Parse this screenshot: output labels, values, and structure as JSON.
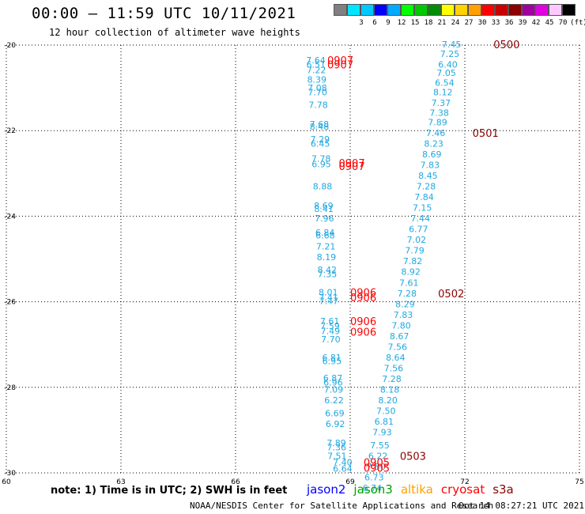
{
  "header": {
    "title": "00:00 – 11:59 UTC 10/11/2021",
    "subtitle": "12 hour collection of altimeter wave heights"
  },
  "color_scale": {
    "unit": "(ft)",
    "bins": [
      {
        "label": "",
        "color": "#808080"
      },
      {
        "label": "3",
        "color": "#00e5ff"
      },
      {
        "label": "6",
        "color": "#00c8ff"
      },
      {
        "label": "9",
        "color": "#0000ff"
      },
      {
        "label": "12",
        "color": "#00aaff"
      },
      {
        "label": "15",
        "color": "#00ff00"
      },
      {
        "label": "18",
        "color": "#00c800"
      },
      {
        "label": "21",
        "color": "#008c00"
      },
      {
        "label": "24",
        "color": "#ffff00"
      },
      {
        "label": "27",
        "color": "#ffd200"
      },
      {
        "label": "30",
        "color": "#ffa000"
      },
      {
        "label": "33",
        "color": "#ff0000"
      },
      {
        "label": "36",
        "color": "#c80000"
      },
      {
        "label": "39",
        "color": "#8c0000"
      },
      {
        "label": "42",
        "color": "#a000a0"
      },
      {
        "label": "45",
        "color": "#e000e0"
      },
      {
        "label": "70",
        "color": "#ffc8ff"
      },
      {
        "label": "",
        "color": "#000000"
      }
    ]
  },
  "map": {
    "lon_range": [
      60,
      75
    ],
    "lat_range": [
      -30,
      -20
    ],
    "lon_ticks": [
      "60",
      "63",
      "66",
      "69",
      "72",
      "75"
    ],
    "lat_ticks": [
      "-20",
      "-22",
      "-24",
      "-26",
      "-28",
      "-30"
    ],
    "grid": "dotted"
  },
  "passes": {
    "label_color": "#ff0000",
    "track_color": "#20a8e0",
    "west_track": [
      {
        "lat": -20.35,
        "v": "7.64"
      },
      {
        "lat": -20.45,
        "v": "6.51"
      },
      {
        "lat": -20.58,
        "v": "7.22"
      },
      {
        "lat": -20.8,
        "v": "8.39"
      },
      {
        "lat": -21.0,
        "v": "7.08"
      },
      {
        "lat": -21.1,
        "v": "7.70"
      },
      {
        "lat": -21.4,
        "v": "7.78"
      },
      {
        "lat": -21.85,
        "v": "7.68"
      },
      {
        "lat": -21.9,
        "v": "8.48"
      },
      {
        "lat": -22.2,
        "v": "7.29"
      },
      {
        "lat": -22.3,
        "v": "6.45"
      },
      {
        "lat": -22.65,
        "v": "7.78"
      },
      {
        "lat": -22.78,
        "v": "6.95"
      },
      {
        "lat": -23.3,
        "v": "8.88"
      },
      {
        "lat": -23.75,
        "v": "8.69"
      },
      {
        "lat": -23.83,
        "v": "8.41"
      },
      {
        "lat": -24.05,
        "v": "7.96"
      },
      {
        "lat": -24.38,
        "v": "6.84"
      },
      {
        "lat": -24.45,
        "v": "6.68"
      },
      {
        "lat": -24.7,
        "v": "7.21"
      },
      {
        "lat": -24.95,
        "v": "8.19"
      },
      {
        "lat": -25.25,
        "v": "8.42"
      },
      {
        "lat": -25.35,
        "v": "7.35"
      },
      {
        "lat": -25.78,
        "v": "8.01"
      },
      {
        "lat": -25.9,
        "v": "7.41"
      },
      {
        "lat": -25.98,
        "v": "7.47"
      },
      {
        "lat": -26.45,
        "v": "7.61"
      },
      {
        "lat": -26.56,
        "v": "7.59"
      },
      {
        "lat": -26.68,
        "v": "7.49"
      },
      {
        "lat": -26.88,
        "v": "7.70"
      },
      {
        "lat": -27.3,
        "v": "6.81"
      },
      {
        "lat": -27.38,
        "v": "6.95"
      },
      {
        "lat": -27.78,
        "v": "6.87"
      },
      {
        "lat": -27.88,
        "v": "6.96"
      },
      {
        "lat": -28.05,
        "v": "7.09"
      },
      {
        "lat": -28.3,
        "v": "6.22"
      },
      {
        "lat": -28.6,
        "v": "6.69"
      },
      {
        "lat": -28.85,
        "v": "6.92"
      },
      {
        "lat": -29.3,
        "v": "7.89"
      },
      {
        "lat": -29.4,
        "v": "7.36"
      },
      {
        "lat": -29.6,
        "v": "7.51"
      }
    ],
    "east_track": [
      {
        "lat": -19.98,
        "v": "7.45"
      },
      {
        "lat": -20.2,
        "v": "7.25"
      },
      {
        "lat": -20.45,
        "v": "6.40"
      },
      {
        "lat": -20.65,
        "v": "7.05"
      },
      {
        "lat": -20.88,
        "v": "6.54"
      },
      {
        "lat": -21.1,
        "v": "8.12"
      },
      {
        "lat": -21.35,
        "v": "7.37"
      },
      {
        "lat": -21.58,
        "v": "7.38"
      },
      {
        "lat": -21.8,
        "v": "7.89"
      },
      {
        "lat": -22.05,
        "v": "7.46"
      },
      {
        "lat": -22.3,
        "v": "8.23"
      },
      {
        "lat": -22.55,
        "v": "8.69"
      },
      {
        "lat": -22.8,
        "v": "7.83"
      },
      {
        "lat": -23.05,
        "v": "8.45"
      },
      {
        "lat": -23.3,
        "v": "7.28"
      },
      {
        "lat": -23.55,
        "v": "7.84"
      },
      {
        "lat": -23.8,
        "v": "7.15"
      },
      {
        "lat": -24.05,
        "v": "7.44"
      },
      {
        "lat": -24.3,
        "v": "6.77"
      },
      {
        "lat": -24.55,
        "v": "7.02"
      },
      {
        "lat": -24.8,
        "v": "7.79"
      },
      {
        "lat": -25.05,
        "v": "7.82"
      },
      {
        "lat": -25.3,
        "v": "8.92"
      },
      {
        "lat": -25.55,
        "v": "7.61"
      },
      {
        "lat": -25.8,
        "v": "7.28"
      },
      {
        "lat": -26.05,
        "v": "8.29"
      },
      {
        "lat": -26.3,
        "v": "7.83"
      },
      {
        "lat": -26.55,
        "v": "7.80"
      },
      {
        "lat": -26.8,
        "v": "8.67"
      },
      {
        "lat": -27.05,
        "v": "7.56"
      },
      {
        "lat": -27.3,
        "v": "8.64"
      },
      {
        "lat": -27.55,
        "v": "7.56"
      },
      {
        "lat": -27.8,
        "v": "7.28"
      },
      {
        "lat": -28.05,
        "v": "8.18"
      },
      {
        "lat": -28.3,
        "v": "8.20"
      },
      {
        "lat": -28.55,
        "v": "7.50"
      },
      {
        "lat": -28.8,
        "v": "6.81"
      },
      {
        "lat": -29.05,
        "v": "7.93"
      },
      {
        "lat": -29.35,
        "v": "7.55"
      },
      {
        "lat": -29.6,
        "v": "6.22"
      },
      {
        "lat": -29.85,
        "v": "7.50"
      },
      {
        "lat": -30.1,
        "v": "6.73"
      },
      {
        "lat": -30.35,
        "v": "6.74"
      }
    ],
    "bottom_extra": [
      {
        "lat": -29.75,
        "v": "7.40"
      },
      {
        "lat": -29.9,
        "v": "6.64"
      }
    ],
    "red_labels": [
      {
        "lat": -20.35,
        "lon": 68.4,
        "t": "0907"
      },
      {
        "lat": -20.45,
        "lon": 68.4,
        "t": "0907"
      },
      {
        "lat": -22.75,
        "lon": 68.7,
        "t": "0907"
      },
      {
        "lat": -22.83,
        "lon": 68.7,
        "t": "0907"
      },
      {
        "lat": -25.78,
        "lon": 69.0,
        "t": "0906"
      },
      {
        "lat": -25.9,
        "lon": 69.0,
        "t": "0906"
      },
      {
        "lat": -26.45,
        "lon": 69.0,
        "t": "0906"
      },
      {
        "lat": -26.7,
        "lon": 69.0,
        "t": "0906"
      },
      {
        "lat": -29.75,
        "lon": 69.35,
        "t": "0905"
      },
      {
        "lat": -29.88,
        "lon": 69.35,
        "t": "0905"
      }
    ],
    "dark_labels": [
      {
        "lat": -19.98,
        "lon": 72.75,
        "t": "0500"
      },
      {
        "lat": -22.05,
        "lon": 72.2,
        "t": "0501"
      },
      {
        "lat": -25.8,
        "lon": 71.3,
        "t": "0502"
      },
      {
        "lat": -29.6,
        "lon": 70.3,
        "t": "0503"
      }
    ]
  },
  "footer": {
    "note": "note: 1) Time is in UTC; 2) SWH is in feet",
    "legend": [
      {
        "name": "jason2",
        "color": "#0000ff"
      },
      {
        "name": "jason3",
        "color": "#00a000"
      },
      {
        "name": "altika",
        "color": "#ffa000"
      },
      {
        "name": "cryosat",
        "color": "#ff0000"
      },
      {
        "name": "s3a",
        "color": "#8c0000"
      }
    ],
    "credit": "NOAA/NESDIS Center for Satellite Applications and Research",
    "timestamp": "Oct 14 08:27:21 UTC 2021"
  }
}
